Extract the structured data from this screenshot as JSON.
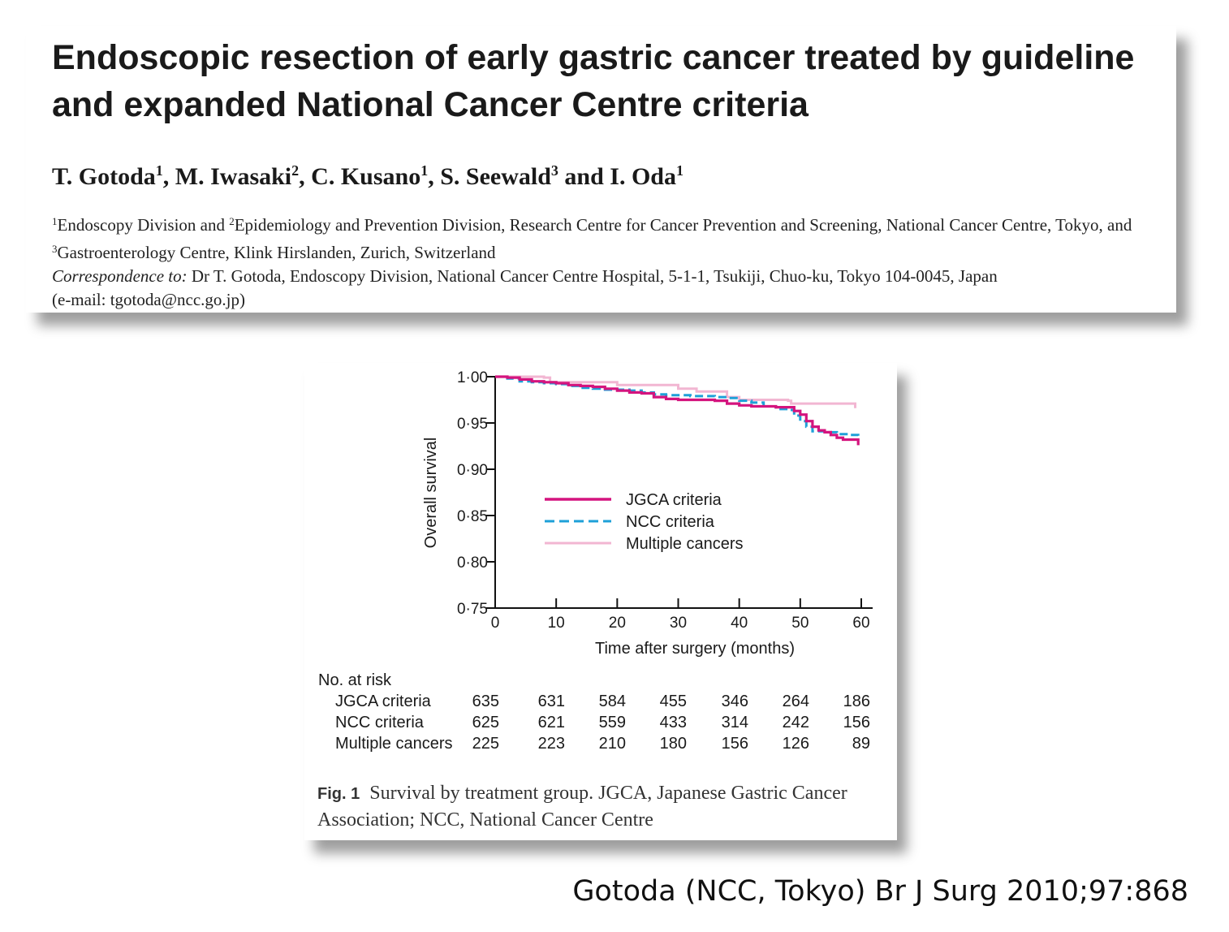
{
  "paper": {
    "title": "Endoscopic resection of early gastric cancer treated by guideline and expanded National Cancer Centre criteria",
    "authors": [
      {
        "name": "T. Gotoda",
        "sup": "1",
        "sep": ", "
      },
      {
        "name": "M. Iwasaki",
        "sup": "2",
        "sep": ", "
      },
      {
        "name": "C. Kusano",
        "sup": "1",
        "sep": ", "
      },
      {
        "name": "S. Seewald",
        "sup": "3",
        "sep": " and "
      },
      {
        "name": "I. Oda",
        "sup": "1",
        "sep": ""
      }
    ],
    "affiliation": {
      "sup1": "1",
      "part1": "Endoscopy Division and ",
      "sup2": "2",
      "part2": "Epidemiology and Prevention Division, Research Centre for Cancer Prevention and Screening, National Cancer Centre, Tokyo, and ",
      "sup3": "3",
      "part3": "Gastroenterology Centre, Klink Hirslanden, Zurich, Switzerland"
    },
    "correspondence_label": "Correspondence to:",
    "correspondence_text": " Dr T. Gotoda, Endoscopy Division, National Cancer Centre Hospital, 5-1-1, Tsukiji, Chuo-ku, Tokyo 104-0045, Japan",
    "email": "(e-mail: tgotoda@ncc.go.jp)"
  },
  "chart_data": {
    "type": "line",
    "subtype": "kaplan-meier step",
    "ylabel": "Overall survival",
    "xlabel": "Time after surgery (months)",
    "xlim": [
      0,
      60
    ],
    "ylim": [
      0.75,
      1.0
    ],
    "xticks": [
      0,
      10,
      20,
      30,
      40,
      50,
      60
    ],
    "yticks": [
      "0·75",
      "0·80",
      "0·85",
      "0·90",
      "0·95",
      "1·00"
    ],
    "ytick_values": [
      0.75,
      0.8,
      0.85,
      0.9,
      0.95,
      1.0
    ],
    "legend_position": "center",
    "series": [
      {
        "name": "JGCA criteria",
        "color": "#d4147e",
        "style": "solid",
        "points": [
          [
            0,
            1.0
          ],
          [
            2,
            0.999
          ],
          [
            4,
            0.997
          ],
          [
            6,
            0.995
          ],
          [
            8,
            0.994
          ],
          [
            10,
            0.993
          ],
          [
            12,
            0.991
          ],
          [
            14,
            0.99
          ],
          [
            16,
            0.989
          ],
          [
            18,
            0.987
          ],
          [
            20,
            0.985
          ],
          [
            22,
            0.983
          ],
          [
            24,
            0.982
          ],
          [
            26,
            0.978
          ],
          [
            28,
            0.976
          ],
          [
            30,
            0.975
          ],
          [
            32,
            0.975
          ],
          [
            34,
            0.975
          ],
          [
            36,
            0.974
          ],
          [
            38,
            0.971
          ],
          [
            40,
            0.969
          ],
          [
            42,
            0.968
          ],
          [
            44,
            0.968
          ],
          [
            46,
            0.967
          ],
          [
            48,
            0.967
          ],
          [
            49,
            0.963
          ],
          [
            50,
            0.959
          ],
          [
            51,
            0.952
          ],
          [
            52,
            0.946
          ],
          [
            53,
            0.942
          ],
          [
            54,
            0.94
          ],
          [
            55,
            0.937
          ],
          [
            56,
            0.934
          ],
          [
            57,
            0.932
          ],
          [
            59.5,
            0.929
          ],
          [
            59.5,
            0.926
          ]
        ]
      },
      {
        "name": "NCC criteria",
        "color": "#1ea0d8",
        "style": "dashed",
        "points": [
          [
            0,
            1.0
          ],
          [
            2,
            0.998
          ],
          [
            4,
            0.995
          ],
          [
            6,
            0.994
          ],
          [
            8,
            0.993
          ],
          [
            10,
            0.992
          ],
          [
            12,
            0.99
          ],
          [
            14,
            0.988
          ],
          [
            16,
            0.987
          ],
          [
            18,
            0.986
          ],
          [
            20,
            0.986
          ],
          [
            22,
            0.985
          ],
          [
            24,
            0.983
          ],
          [
            26,
            0.981
          ],
          [
            28,
            0.98
          ],
          [
            30,
            0.98
          ],
          [
            32,
            0.979
          ],
          [
            34,
            0.979
          ],
          [
            36,
            0.978
          ],
          [
            38,
            0.977
          ],
          [
            40,
            0.974
          ],
          [
            42,
            0.972
          ],
          [
            44,
            0.968
          ],
          [
            46,
            0.965
          ],
          [
            48,
            0.964
          ],
          [
            49,
            0.958
          ],
          [
            50,
            0.952
          ],
          [
            51,
            0.946
          ],
          [
            52,
            0.941
          ],
          [
            54,
            0.94
          ],
          [
            56,
            0.938
          ],
          [
            58,
            0.937
          ],
          [
            59.5,
            0.935
          ]
        ]
      },
      {
        "name": "Multiple cancers",
        "color": "#f2b6d2",
        "style": "solid",
        "points": [
          [
            0,
            1.0
          ],
          [
            8,
            0.999
          ],
          [
            9,
            0.994
          ],
          [
            20,
            0.991
          ],
          [
            29,
            0.991
          ],
          [
            30,
            0.987
          ],
          [
            33,
            0.984
          ],
          [
            38,
            0.978
          ],
          [
            40,
            0.975
          ],
          [
            48,
            0.974
          ],
          [
            48.5,
            0.971
          ],
          [
            59,
            0.971
          ],
          [
            59,
            0.966
          ]
        ]
      }
    ]
  },
  "risk_table": {
    "heading": "No. at risk",
    "rows": [
      {
        "label": "JGCA criteria",
        "values": [
          "635",
          "631",
          "584",
          "455",
          "346",
          "264",
          "186"
        ]
      },
      {
        "label": "NCC criteria",
        "values": [
          "625",
          "621",
          "559",
          "433",
          "314",
          "242",
          "156"
        ]
      },
      {
        "label": "Multiple cancers",
        "values": [
          "225",
          "223",
          "210",
          "180",
          "156",
          "126",
          "89"
        ]
      }
    ]
  },
  "figure": {
    "label": "Fig. 1",
    "caption": "Survival by treatment group. JGCA, Japanese Gastric Cancer Association; NCC, National Cancer Centre"
  },
  "citation": "Gotoda (NCC, Tokyo) Br J Surg 2010;97:868"
}
